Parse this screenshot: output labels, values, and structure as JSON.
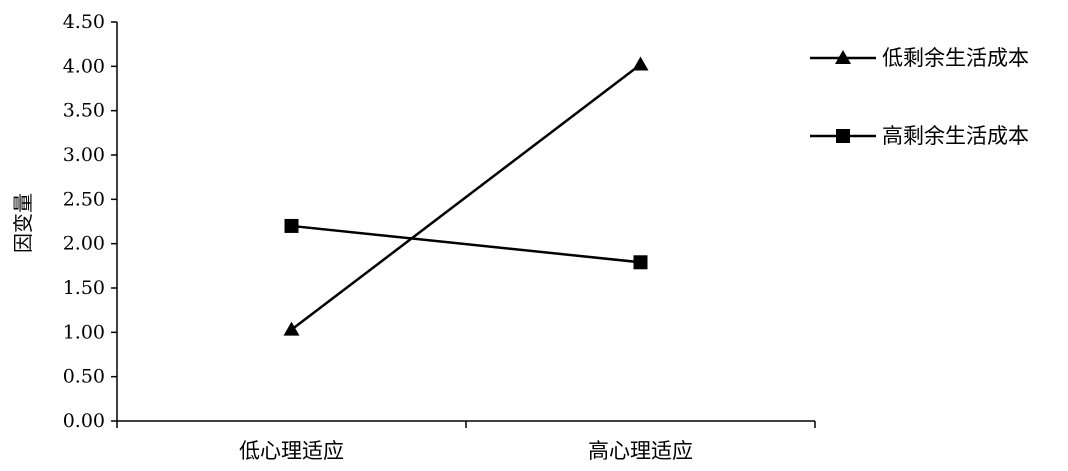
{
  "chart_data": {
    "type": "line",
    "title": "",
    "xlabel": "",
    "ylabel": "因变量",
    "categories": [
      "低心理适应",
      "高心理适应"
    ],
    "ylim": [
      0,
      4.5
    ],
    "yticks": [
      "0.00",
      "0.50",
      "1.00",
      "1.50",
      "2.00",
      "2.50",
      "3.00",
      "3.50",
      "4.00",
      "4.50"
    ],
    "grid": false,
    "legend_position": "right",
    "series": [
      {
        "name": "低剩余生活成本",
        "marker": "triangle",
        "values": [
          1.03,
          4.02
        ]
      },
      {
        "name": "高剩余生活成本",
        "marker": "square",
        "values": [
          2.2,
          1.79
        ]
      }
    ],
    "colors": {
      "line": "#000000",
      "axis": "#000000"
    }
  }
}
